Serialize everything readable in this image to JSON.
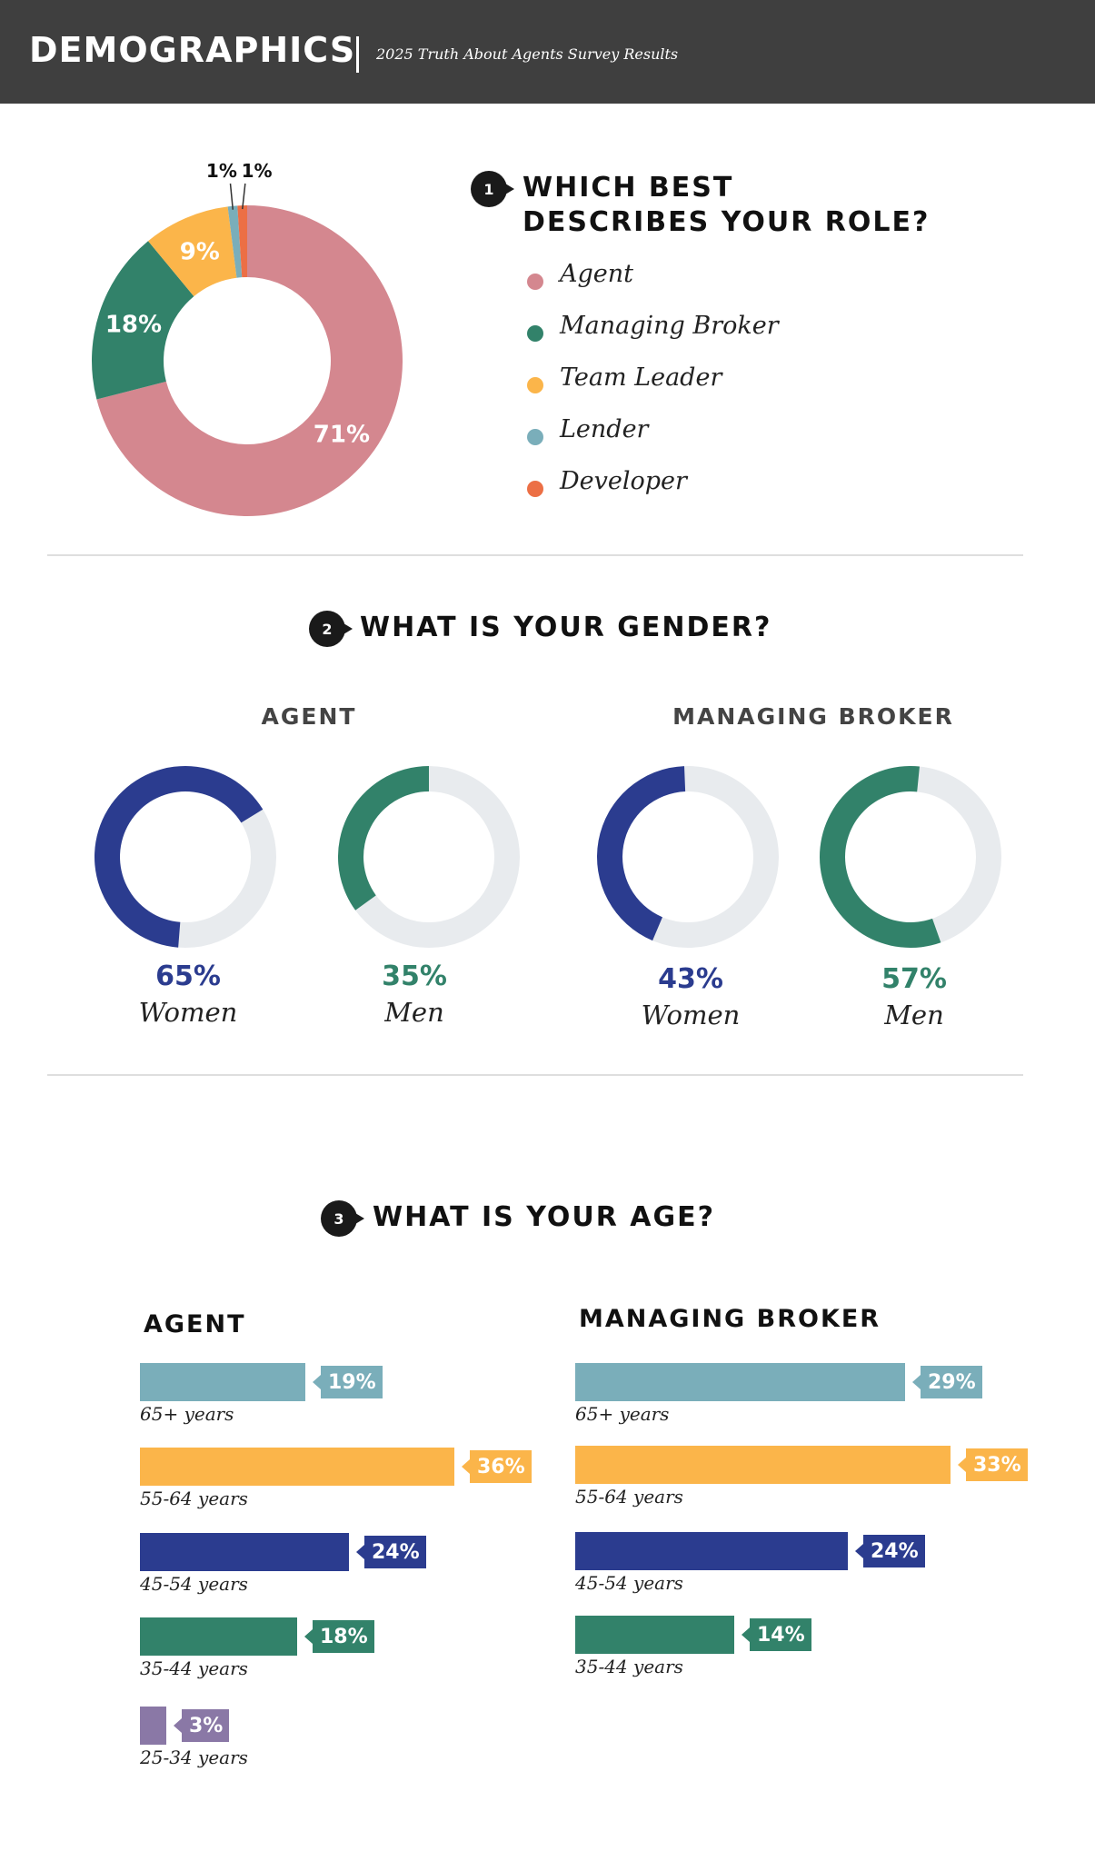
{
  "header": {
    "title": "DEMOGRAPHICS",
    "subtitle": "2025 Truth About Agents Survey Results"
  },
  "q1": {
    "number": "1",
    "title_line1": "WHICH BEST",
    "title_line2": "DESCRIBES YOUR ROLE?"
  },
  "q2": {
    "number": "2",
    "title": "WHAT IS YOUR GENDER?"
  },
  "q3": {
    "number": "3",
    "title": "WHAT IS YOUR AGE?"
  },
  "colors": {
    "agent": "#d4878f",
    "managing_broker": "#32826a",
    "team_leader": "#fbb54a",
    "lender": "#7aaeba",
    "developer": "#ec6f45",
    "women": "#2b3c8f",
    "men": "#32826a",
    "ring_track": "#e8ebee",
    "age_65": "#7aaeba",
    "age_55": "#fbb54a",
    "age_45": "#2b3c8f",
    "age_35": "#32826a",
    "age_25": "#8a78a6"
  },
  "chart_data": [
    {
      "type": "pie",
      "title": "WHICH BEST DESCRIBES YOUR ROLE?",
      "categories": [
        "Agent",
        "Managing Broker",
        "Team Leader",
        "Lender",
        "Developer"
      ],
      "values": [
        71,
        18,
        9,
        1,
        1
      ],
      "value_labels": [
        "71%",
        "18%",
        "9%",
        "1%",
        "1%"
      ],
      "colors": [
        "#d4878f",
        "#32826a",
        "#fbb54a",
        "#7aaeba",
        "#ec6f45"
      ],
      "donut": true,
      "legend": "right"
    },
    {
      "type": "pie",
      "title": "WHAT IS YOUR GENDER?",
      "groups": [
        {
          "name": "AGENT",
          "items": [
            {
              "label": "Women",
              "value": 65,
              "value_label": "65%",
              "color": "#2b3c8f"
            },
            {
              "label": "Men",
              "value": 35,
              "value_label": "35%",
              "color": "#32826a"
            }
          ]
        },
        {
          "name": "MANAGING BROKER",
          "items": [
            {
              "label": "Women",
              "value": 43,
              "value_label": "43%",
              "color": "#2b3c8f"
            },
            {
              "label": "Men",
              "value": 57,
              "value_label": "57%",
              "color": "#32826a"
            }
          ]
        }
      ]
    },
    {
      "type": "bar",
      "title": "WHAT IS YOUR AGE?",
      "orientation": "horizontal",
      "groups": [
        {
          "name": "AGENT",
          "categories": [
            "65+ years",
            "55-64 years",
            "45-54 years",
            "35-44 years",
            "25-34 years"
          ],
          "values": [
            19,
            36,
            24,
            18,
            3
          ],
          "value_labels": [
            "19%",
            "36%",
            "24%",
            "18%",
            "3%"
          ],
          "colors": [
            "#7aaeba",
            "#fbb54a",
            "#2b3c8f",
            "#32826a",
            "#8a78a6"
          ]
        },
        {
          "name": "MANAGING BROKER",
          "categories": [
            "65+ years",
            "55-64 years",
            "45-54 years",
            "35-44 years"
          ],
          "values": [
            29,
            33,
            24,
            14
          ],
          "value_labels": [
            "29%",
            "33%",
            "24%",
            "14%"
          ],
          "colors": [
            "#7aaeba",
            "#fbb54a",
            "#2b3c8f",
            "#32826a"
          ]
        }
      ]
    }
  ]
}
